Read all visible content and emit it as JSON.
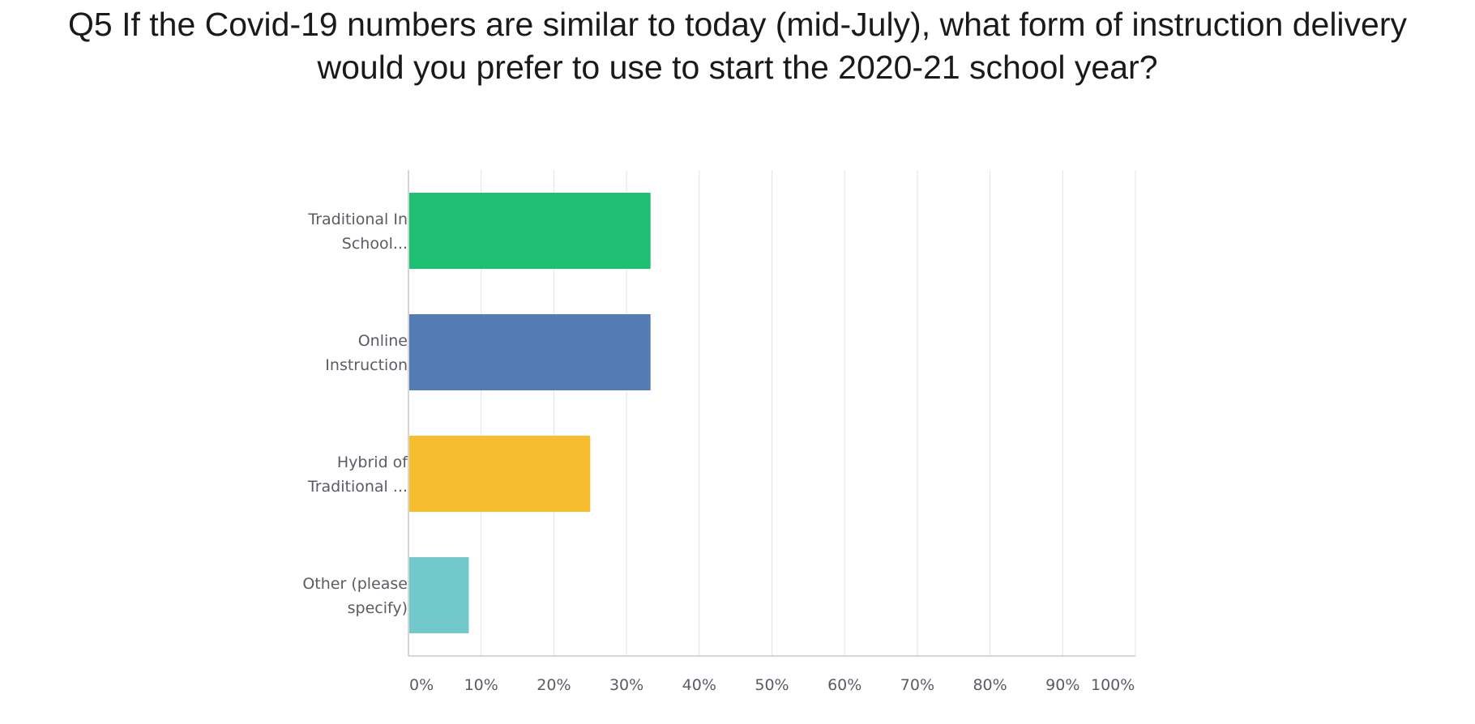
{
  "title_lines": [
    "Q5 If the Covid-19 numbers are similar to today (mid-July), what form of instruction delivery",
    "would you prefer to use to start the 2020-21 school year?"
  ],
  "chart_data": {
    "type": "bar",
    "orientation": "horizontal",
    "title": "Q5 If the Covid-19 numbers are similar to today (mid-July), what form of instruction delivery would you prefer to use to start the 2020-21 school year?",
    "categories": [
      [
        "Traditional In",
        "School..."
      ],
      [
        "Online",
        "Instruction"
      ],
      [
        "Hybrid of",
        "Traditional ..."
      ],
      [
        "Other (please",
        "specify)"
      ]
    ],
    "values": [
      33.3,
      33.3,
      25.0,
      8.3
    ],
    "colors": [
      "#1fbf73",
      "#527cb3",
      "#f6bd2f",
      "#72c8cb"
    ],
    "xlim": [
      0,
      100
    ],
    "xticks": [
      "0%",
      "10%",
      "20%",
      "30%",
      "40%",
      "50%",
      "60%",
      "70%",
      "80%",
      "90%",
      "100%"
    ],
    "grid": true,
    "legend": "none",
    "xlabel": "",
    "ylabel": ""
  }
}
